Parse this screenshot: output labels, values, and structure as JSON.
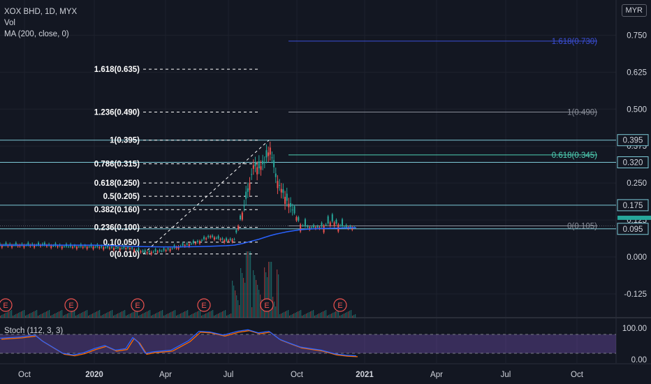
{
  "header": {
    "title": "XOX BHD, 1D, MYX",
    "volume_label": "Vol",
    "ma_label": "MA (200, close, 0)",
    "currency": "MYR"
  },
  "price_axis": {
    "ticks": [
      {
        "v": 0.75,
        "label": "0.750"
      },
      {
        "v": 0.625,
        "label": "0.625"
      },
      {
        "v": 0.5,
        "label": "0.500"
      },
      {
        "v": 0.375,
        "label": "0.375"
      },
      {
        "v": 0.25,
        "label": "0.250"
      },
      {
        "v": 0.125,
        "label": "0.125"
      },
      {
        "v": 0.0,
        "label": "0.000"
      },
      {
        "v": -0.125,
        "label": "-0.125"
      }
    ],
    "badges": [
      {
        "v": 0.395,
        "label": "0.395"
      },
      {
        "v": 0.32,
        "label": "0.320"
      },
      {
        "v": 0.175,
        "label": "0.175"
      },
      {
        "v": 0.095,
        "label": "0.095"
      }
    ]
  },
  "stoch": {
    "label": "Stoch (112, 3, 3)",
    "ticks": [
      {
        "v": 100,
        "label": "100.00"
      },
      {
        "v": 0,
        "label": "0.00"
      }
    ],
    "band": [
      20,
      80
    ]
  },
  "time_axis": [
    "Oct",
    "2020",
    "Apr",
    "Jul",
    "Oct",
    "2021",
    "Apr",
    "Jul",
    "Oct"
  ],
  "earnings_marker": "E",
  "horizontal_lines": [
    {
      "v": 0.395,
      "color": "#7ecbd8"
    },
    {
      "v": 0.32,
      "color": "#7ecbd8"
    },
    {
      "v": 0.175,
      "color": "#7ecbd8"
    },
    {
      "v": 0.095,
      "color": "#7ecbd8"
    }
  ],
  "fib_retracement": [
    {
      "label": "1.618(0.635)",
      "v": 0.635
    },
    {
      "label": "1.236(0.490)",
      "v": 0.49
    },
    {
      "label": "1(0.395)",
      "v": 0.395
    },
    {
      "label": "0.786(0.315)",
      "v": 0.315
    },
    {
      "label": "0.618(0.250)",
      "v": 0.25
    },
    {
      "label": "0.5(0.205)",
      "v": 0.205
    },
    {
      "label": "0.382(0.160)",
      "v": 0.16
    },
    {
      "label": "0.236(0.100)",
      "v": 0.1
    },
    {
      "label": "0.1(0.050)",
      "v": 0.05
    },
    {
      "label": "0(0.010)",
      "v": 0.01
    }
  ],
  "fib_extension": [
    {
      "label": "1.618(0.730)",
      "v": 0.73,
      "color": "#3b4fd8"
    },
    {
      "label": "1(0.490)",
      "v": 0.49,
      "color": "#8a8e99"
    },
    {
      "label": "0.618(0.345)",
      "v": 0.345,
      "color": "#4fd1b5"
    },
    {
      "label": "0(0.105)",
      "v": 0.105,
      "color": "#8a8e99"
    }
  ],
  "colors": {
    "background": "#131722",
    "up": "#26a69a",
    "down": "#ef5350",
    "ma": "#2962ff",
    "stoch_k": "#2962ff",
    "stoch_d": "#ff6d00",
    "stoch_band": "#7e57c2",
    "level": "#7ecbd8",
    "earnings": "#ef5350"
  },
  "chart_data": {
    "type": "line",
    "title": "XOX BHD, 1D, MYX",
    "x": [
      "2019-09-20",
      "2019-10-15",
      "2019-11-15",
      "2019-12-15",
      "2020-01-15",
      "2020-02-15",
      "2020-03-01",
      "2020-03-20",
      "2020-04-10",
      "2020-05-01",
      "2020-05-25",
      "2020-06-10",
      "2020-06-30",
      "2020-07-10",
      "2020-07-20",
      "2020-07-27",
      "2020-08-03",
      "2020-08-10",
      "2020-08-17",
      "2020-08-24",
      "2020-08-31",
      "2020-09-07",
      "2020-09-14",
      "2020-09-21",
      "2020-10-01",
      "2020-10-10",
      "2020-10-25",
      "2020-11-10",
      "2020-11-25",
      "2020-12-10"
    ],
    "series": [
      {
        "name": "XOX BHD",
        "values": [
          0.04,
          0.04,
          0.04,
          0.035,
          0.035,
          0.03,
          0.03,
          0.015,
          0.02,
          0.035,
          0.05,
          0.07,
          0.055,
          0.06,
          0.15,
          0.22,
          0.31,
          0.3,
          0.32,
          0.37,
          0.27,
          0.23,
          0.19,
          0.16,
          0.11,
          0.1,
          0.1,
          0.12,
          0.1,
          0.1
        ]
      },
      {
        "name": "MA (200, close, 0)",
        "values": [
          0.04,
          0.04,
          0.04,
          0.04,
          0.04,
          0.038,
          0.036,
          0.035,
          0.034,
          0.034,
          0.035,
          0.036,
          0.038,
          0.04,
          0.045,
          0.05,
          0.055,
          0.06,
          0.066,
          0.072,
          0.077,
          0.081,
          0.085,
          0.088,
          0.092,
          0.094,
          0.096,
          0.097,
          0.098,
          0.099
        ]
      }
    ],
    "ylim": [
      -0.15,
      0.79
    ],
    "legend": "top-left"
  }
}
